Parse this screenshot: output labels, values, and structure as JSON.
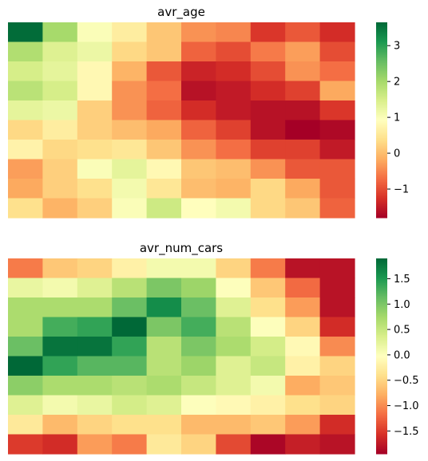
{
  "chart_data": [
    {
      "type": "heatmap",
      "title": "avr_age",
      "xlabel": "",
      "ylabel": "",
      "colormap": "RdYlGn",
      "colorbar": {
        "range": [
          -1.8,
          3.65
        ],
        "ticks": [
          3,
          2,
          1,
          0,
          -1
        ],
        "tick_labels": [
          "3",
          "2",
          "1",
          "0",
          "−1"
        ]
      },
      "values": [
        [
          3.6,
          2.0,
          1.0,
          0.6,
          0.1,
          -0.4,
          -0.5,
          -1.2,
          -0.9,
          -1.3
        ],
        [
          1.9,
          1.4,
          1.2,
          0.3,
          0.1,
          -0.8,
          -1.0,
          -0.6,
          -0.3,
          -1.0
        ],
        [
          1.5,
          1.3,
          0.8,
          -0.1,
          -0.9,
          -1.4,
          -1.3,
          -1.0,
          -0.4,
          -0.7
        ],
        [
          1.8,
          1.5,
          0.8,
          -0.4,
          -0.7,
          -1.6,
          -1.5,
          -1.3,
          -1.1,
          -0.2
        ],
        [
          1.3,
          1.2,
          0.2,
          -0.4,
          -0.8,
          -1.3,
          -1.5,
          -1.6,
          -1.6,
          -1.2
        ],
        [
          0.3,
          0.6,
          0.2,
          0.0,
          -0.2,
          -0.8,
          -1.1,
          -1.6,
          -1.8,
          -1.7
        ],
        [
          0.7,
          0.3,
          0.4,
          0.5,
          0.1,
          -0.4,
          -0.7,
          -1.1,
          -1.1,
          -1.5
        ],
        [
          -0.3,
          0.2,
          1.0,
          1.3,
          0.8,
          0.1,
          0.0,
          -0.4,
          -0.9,
          -0.9
        ],
        [
          -0.2,
          0.2,
          0.4,
          1.1,
          0.5,
          0.0,
          -0.1,
          0.3,
          -0.2,
          -0.9
        ],
        [
          0.4,
          -0.1,
          0.2,
          1.0,
          1.6,
          0.9,
          1.1,
          0.3,
          0.1,
          -0.8
        ]
      ]
    },
    {
      "type": "heatmap",
      "title": "avr_num_cars",
      "xlabel": "",
      "ylabel": "",
      "colormap": "RdYlGn",
      "colorbar": {
        "range": [
          -1.95,
          1.9
        ],
        "ticks": [
          1.5,
          1.0,
          0.5,
          0.0,
          -0.5,
          -1.0,
          -1.5
        ],
        "tick_labels": [
          "1.5",
          "1.0",
          "0.5",
          "0.0",
          "−0.5",
          "−1.0",
          "−1.5"
        ]
      },
      "values": [
        [
          -1.1,
          -0.6,
          -0.5,
          -0.2,
          0.1,
          0.1,
          -0.5,
          -1.1,
          -1.8,
          -1.8
        ],
        [
          0.2,
          0.1,
          0.3,
          0.6,
          1.0,
          0.8,
          0.0,
          -0.6,
          -1.2,
          -1.8
        ],
        [
          0.7,
          0.7,
          0.7,
          1.1,
          1.6,
          1.1,
          0.3,
          -0.4,
          -0.9,
          -1.8
        ],
        [
          0.7,
          1.3,
          1.4,
          1.9,
          1.0,
          1.3,
          0.6,
          0.0,
          -0.5,
          -1.6
        ],
        [
          1.1,
          1.8,
          1.8,
          1.4,
          0.6,
          1.0,
          0.7,
          0.4,
          -0.1,
          -1.0
        ],
        [
          1.9,
          1.4,
          1.2,
          1.2,
          0.6,
          0.8,
          0.3,
          0.5,
          -0.2,
          -0.5
        ],
        [
          0.9,
          0.7,
          0.7,
          0.6,
          0.7,
          0.5,
          0.3,
          0.1,
          -0.8,
          -0.6
        ],
        [
          0.3,
          0.1,
          0.2,
          0.4,
          0.3,
          0.0,
          -0.1,
          -0.2,
          -0.4,
          -0.5
        ],
        [
          -0.3,
          -0.7,
          -0.5,
          -0.4,
          -0.4,
          -0.7,
          -0.7,
          -0.6,
          -0.9,
          -1.6
        ],
        [
          -1.5,
          -1.6,
          -0.9,
          -1.1,
          -0.3,
          -0.5,
          -1.4,
          -1.9,
          -1.7,
          -1.8
        ]
      ]
    }
  ]
}
